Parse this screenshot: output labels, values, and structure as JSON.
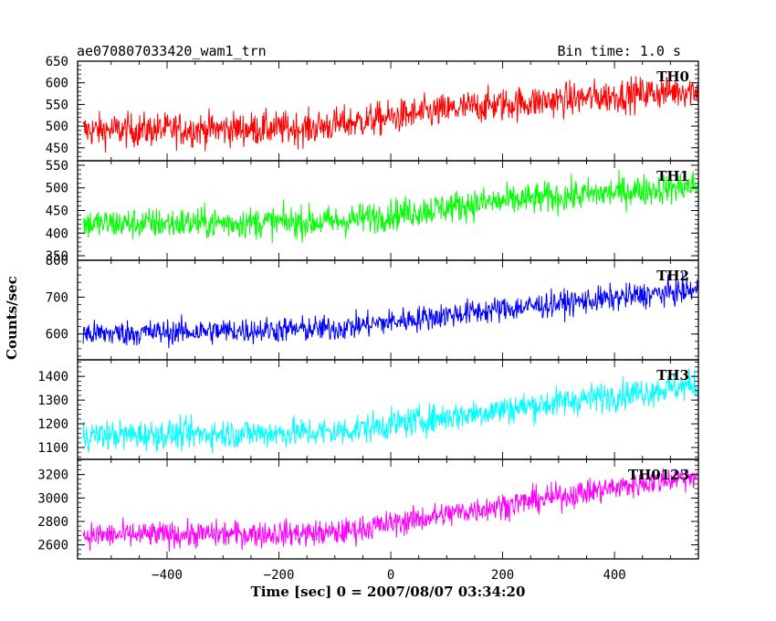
{
  "header": {
    "left_title": "ae070807033420_wam1_trn",
    "right_title": "Bin time: 1.0 s"
  },
  "chart_data": {
    "type": "line",
    "x_range": [
      -560,
      550
    ],
    "xlabel": "Time [sec] 0 = 2007/08/07 03:34:20",
    "ylabel": "Counts/sec",
    "x_ticks": [
      -400,
      -200,
      0,
      200,
      400
    ],
    "x_tick_labels": [
      "−400",
      "−200",
      "0",
      "200",
      "400"
    ],
    "series": [
      {
        "name": "TH0",
        "color": "#ff0000",
        "ylim": [
          420,
          650
        ],
        "yticks": [
          450,
          500,
          550,
          600,
          650
        ],
        "trend": [
          [
            -550,
            490
          ],
          [
            -150,
            495
          ],
          [
            150,
            545
          ],
          [
            550,
            585
          ]
        ],
        "noise": 28
      },
      {
        "name": "TH1",
        "color": "#00ff00",
        "ylim": [
          340,
          560
        ],
        "yticks": [
          350,
          400,
          450,
          500,
          550
        ],
        "trend": [
          [
            -550,
            420
          ],
          [
            -100,
            425
          ],
          [
            150,
            465
          ],
          [
            550,
            505
          ]
        ],
        "noise": 25
      },
      {
        "name": "TH2",
        "color": "#0000ff",
        "ylim": [
          530,
          800
        ],
        "yticks": [
          600,
          700,
          800
        ],
        "trend": [
          [
            -550,
            600
          ],
          [
            -100,
            615
          ],
          [
            150,
            660
          ],
          [
            550,
            720
          ]
        ],
        "noise": 25
      },
      {
        "name": "TH3",
        "color": "#00ffff",
        "ylim": [
          1050,
          1470
        ],
        "yticks": [
          1100,
          1200,
          1300,
          1400
        ],
        "trend": [
          [
            -550,
            1150
          ],
          [
            -100,
            1165
          ],
          [
            150,
            1245
          ],
          [
            550,
            1365
          ]
        ],
        "noise": 45
      },
      {
        "name": "TH0123",
        "color": "#ff00ff",
        "ylim": [
          2480,
          3330
        ],
        "yticks": [
          2600,
          2800,
          3000,
          3200
        ],
        "trend": [
          [
            -550,
            2680
          ],
          [
            -100,
            2700
          ],
          [
            150,
            2900
          ],
          [
            550,
            3200
          ]
        ],
        "noise": 80
      }
    ]
  }
}
